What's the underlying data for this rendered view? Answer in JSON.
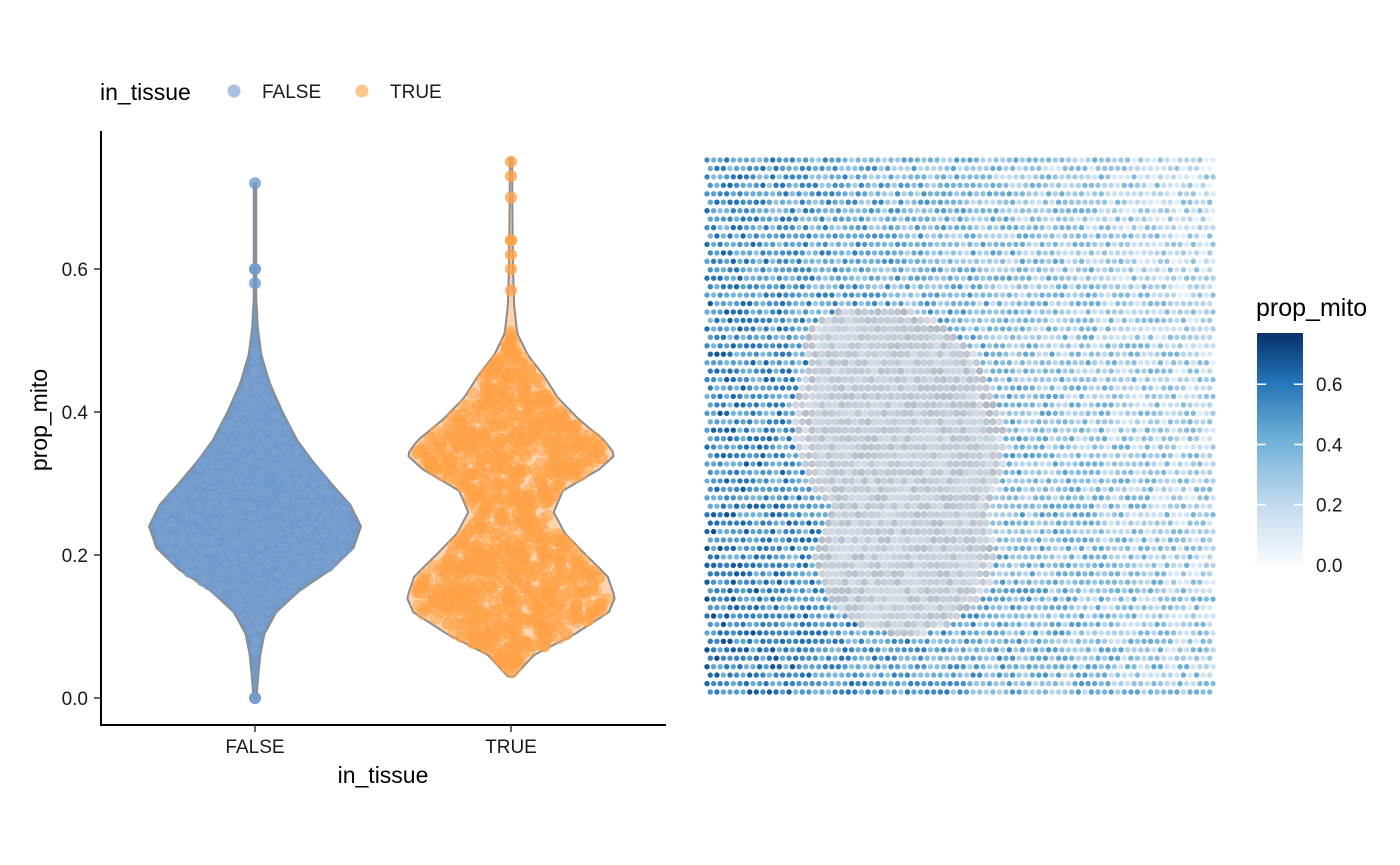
{
  "chart_data": [
    {
      "type": "violin",
      "xlabel": "in_tissue",
      "ylabel": "prop_mito",
      "categories": [
        "FALSE",
        "TRUE"
      ],
      "ylim": [
        -0.04,
        0.79
      ],
      "yticks": [
        0.0,
        0.2,
        0.4,
        0.6
      ],
      "ytick_labels": [
        "0.0",
        "0.2",
        "0.4",
        "0.6"
      ],
      "legend": {
        "title": "in_tissue",
        "position": "top-left",
        "entries": [
          {
            "label": "FALSE",
            "color": "#7aa0d0"
          },
          {
            "label": "TRUE",
            "color": "#ffa84f"
          }
        ]
      },
      "series": [
        {
          "category": "FALSE",
          "color": "#6f9bcc",
          "min": 0.0,
          "max": 0.72,
          "density_profile": [
            [
              0.0,
              0.015
            ],
            [
              0.03,
              0.03
            ],
            [
              0.06,
              0.05
            ],
            [
              0.09,
              0.09
            ],
            [
              0.12,
              0.2
            ],
            [
              0.15,
              0.42
            ],
            [
              0.18,
              0.72
            ],
            [
              0.21,
              0.93
            ],
            [
              0.24,
              1.0
            ],
            [
              0.27,
              0.9
            ],
            [
              0.3,
              0.72
            ],
            [
              0.33,
              0.55
            ],
            [
              0.36,
              0.4
            ],
            [
              0.4,
              0.26
            ],
            [
              0.44,
              0.14
            ],
            [
              0.48,
              0.06
            ],
            [
              0.52,
              0.025
            ],
            [
              0.56,
              0.012
            ],
            [
              0.6,
              0.008
            ],
            [
              0.65,
              0.006
            ],
            [
              0.72,
              0.005
            ]
          ],
          "outliers": [
            0.0,
            0.0,
            0.58,
            0.6,
            0.6,
            0.72
          ]
        },
        {
          "category": "TRUE",
          "color": "#ffa34a",
          "min": 0.03,
          "max": 0.755,
          "density_profile": [
            [
              0.03,
              0.03
            ],
            [
              0.06,
              0.22
            ],
            [
              0.09,
              0.62
            ],
            [
              0.12,
              0.94
            ],
            [
              0.14,
              1.0
            ],
            [
              0.17,
              0.93
            ],
            [
              0.2,
              0.72
            ],
            [
              0.23,
              0.52
            ],
            [
              0.26,
              0.41
            ],
            [
              0.29,
              0.5
            ],
            [
              0.32,
              0.85
            ],
            [
              0.34,
              1.0
            ],
            [
              0.36,
              0.9
            ],
            [
              0.39,
              0.65
            ],
            [
              0.42,
              0.45
            ],
            [
              0.45,
              0.32
            ],
            [
              0.48,
              0.16
            ],
            [
              0.51,
              0.06
            ],
            [
              0.55,
              0.03
            ],
            [
              0.6,
              0.02
            ],
            [
              0.66,
              0.015
            ],
            [
              0.72,
              0.012
            ],
            [
              0.755,
              0.01
            ]
          ],
          "outliers": [
            0.57,
            0.6,
            0.62,
            0.64,
            0.64,
            0.7,
            0.73,
            0.75
          ]
        }
      ]
    },
    {
      "type": "heatmap",
      "kind": "spatial spot map",
      "color_by": "prop_mito",
      "colorbar": {
        "title": "prop_mito",
        "range": [
          0.0,
          0.77
        ],
        "ticks": [
          0.0,
          0.2,
          0.4,
          0.6
        ],
        "tick_labels": [
          "0.0",
          "0.2",
          "0.4",
          "0.6"
        ],
        "colors": [
          "#f7fbff",
          "#c6dbef",
          "#6baed6",
          "#2171b5",
          "#08306b"
        ]
      },
      "grid": {
        "rows": 64,
        "cols": 78
      },
      "tissue_region": {
        "color": "#c3ccd6",
        "typical_value": 0.1
      },
      "background_value_range": [
        0.1,
        0.65
      ]
    }
  ]
}
